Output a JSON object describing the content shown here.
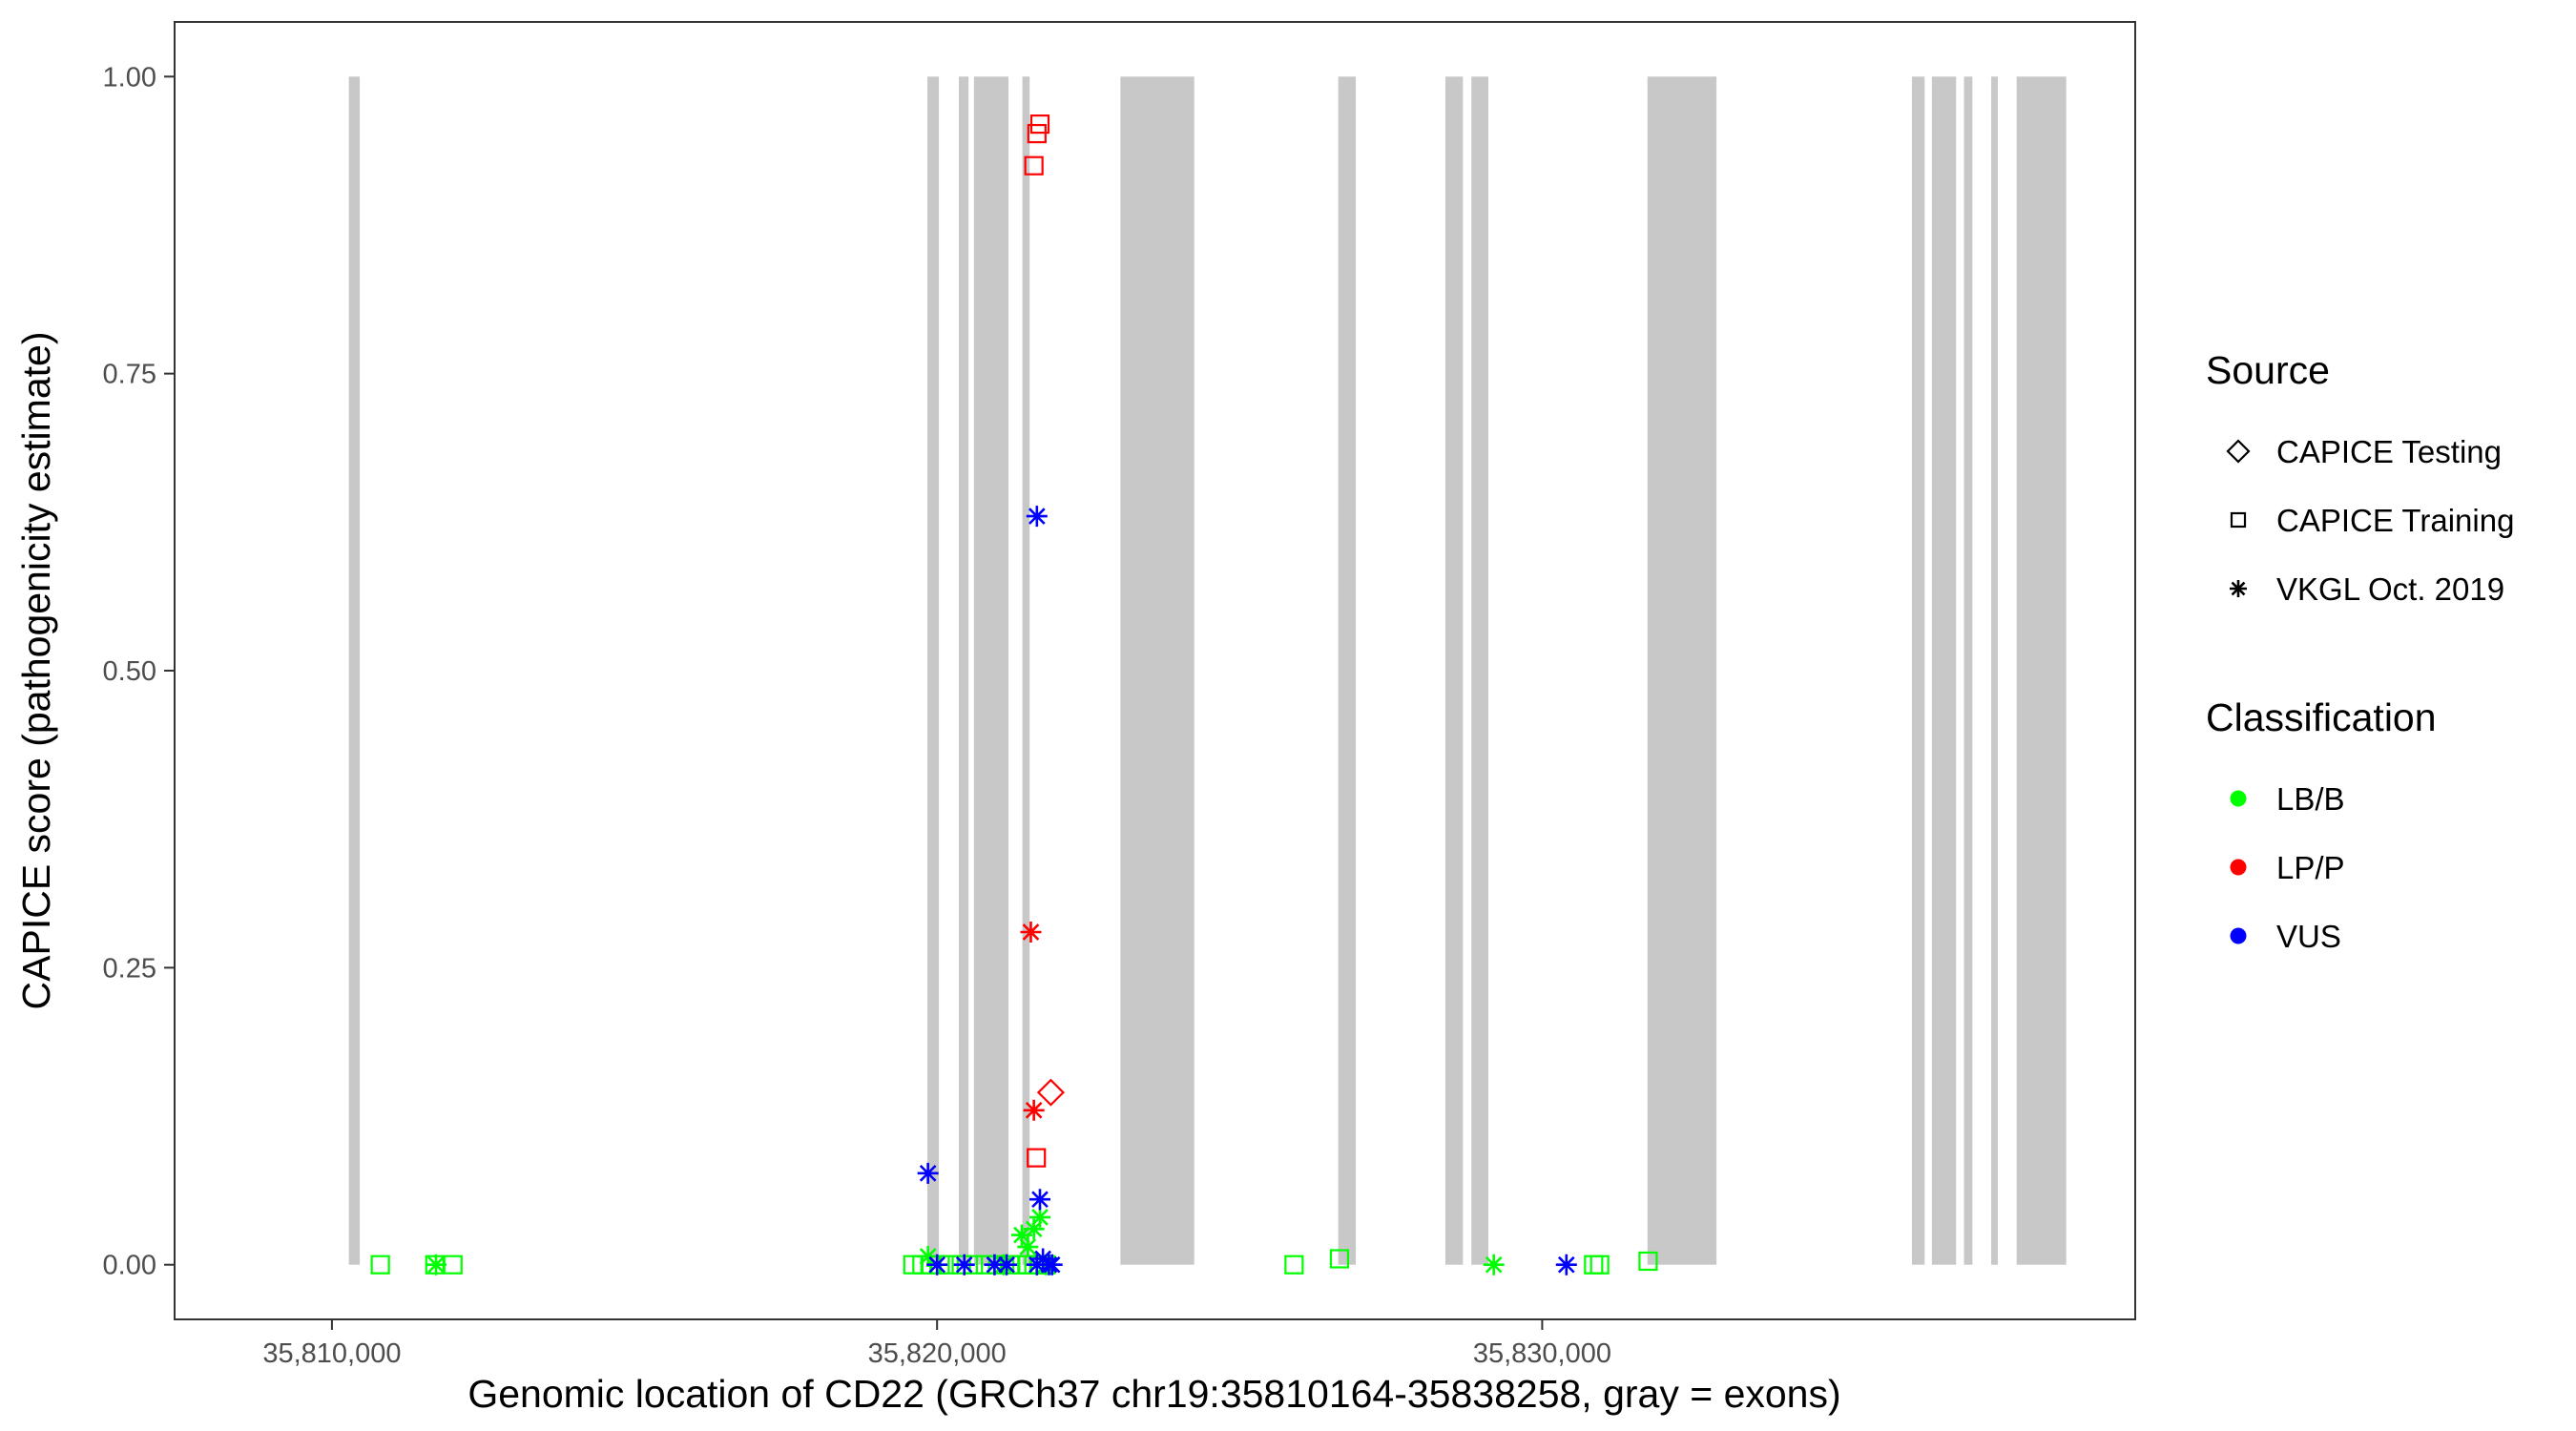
{
  "chart_data": {
    "type": "scatter",
    "title": "",
    "xlabel": "Genomic location of CD22 (GRCh37 chr19:35810164-35838258, gray = exons)",
    "ylabel": "CAPICE score (pathogenicity estimate)",
    "xlim": [
      35807400,
      35839800
    ],
    "ylim": [
      -0.046,
      1.046
    ],
    "x_ticks": [
      35810000,
      35820000,
      35830000
    ],
    "x_tick_labels": [
      "35,810,000",
      "35,820,000",
      "35,830,000"
    ],
    "y_ticks": [
      0,
      0.25,
      0.5,
      0.75,
      1
    ],
    "y_tick_labels": [
      "0.00",
      "0.25",
      "0.50",
      "0.75",
      "1.00"
    ],
    "grid": false,
    "exon_color": "#c8c8c8",
    "exons": [
      [
        35810280,
        35810460
      ],
      [
        35819840,
        35820030
      ],
      [
        35820360,
        35820520
      ],
      [
        35820610,
        35821180
      ],
      [
        35821410,
        35821530
      ],
      [
        35823030,
        35824250
      ],
      [
        35826630,
        35826920
      ],
      [
        35828400,
        35828690
      ],
      [
        35828830,
        35829110
      ],
      [
        35831740,
        35832880
      ],
      [
        35836110,
        35836320
      ],
      [
        35836440,
        35836840
      ],
      [
        35836970,
        35837110
      ],
      [
        35837420,
        35837530
      ],
      [
        35837840,
        35838660
      ]
    ],
    "legend_position": "right",
    "legends": [
      {
        "title": "Source",
        "items": [
          {
            "label": "CAPICE Testing",
            "shape": "diamond"
          },
          {
            "label": "CAPICE Training",
            "shape": "square"
          },
          {
            "label": "VKGL Oct. 2019",
            "shape": "asterisk"
          }
        ]
      },
      {
        "title": "Classification",
        "items": [
          {
            "label": "LB/B",
            "color": "#00ff00"
          },
          {
            "label": "LP/P",
            "color": "#ff0000"
          },
          {
            "label": "VUS",
            "color": "#0000ff"
          }
        ]
      }
    ],
    "series": [
      {
        "source": "CAPICE Training",
        "classification": "LB/B",
        "shape": "square",
        "color": "#00ff00",
        "points": [
          [
            35810800,
            0.0
          ],
          [
            35811700,
            0.0
          ],
          [
            35812000,
            0.0
          ],
          [
            35819600,
            0.0
          ],
          [
            35819750,
            0.0
          ],
          [
            35819900,
            0.0
          ],
          [
            35820050,
            0.0
          ],
          [
            35820200,
            0.0
          ],
          [
            35820400,
            0.0
          ],
          [
            35820600,
            0.0
          ],
          [
            35820800,
            0.0
          ],
          [
            35821000,
            0.0
          ],
          [
            35821200,
            0.0
          ],
          [
            35821400,
            0.0
          ],
          [
            35821500,
            0.0
          ],
          [
            35821600,
            0.0
          ],
          [
            35821700,
            0.0
          ],
          [
            35821800,
            0.0
          ],
          [
            35825900,
            0.0
          ],
          [
            35826650,
            0.005
          ],
          [
            35830850,
            0.0
          ],
          [
            35830950,
            0.0
          ],
          [
            35831750,
            0.003
          ]
        ]
      },
      {
        "source": "VKGL Oct. 2019",
        "classification": "LB/B",
        "shape": "asterisk",
        "color": "#00ff00",
        "points": [
          [
            35811720,
            0.0
          ],
          [
            35819850,
            0.007
          ],
          [
            35821100,
            0.0
          ],
          [
            35821400,
            0.025
          ],
          [
            35821500,
            0.015
          ],
          [
            35821600,
            0.03
          ],
          [
            35821700,
            0.04
          ],
          [
            35821800,
            0.0
          ],
          [
            35821650,
            0.0
          ],
          [
            35829200,
            0.0
          ]
        ]
      },
      {
        "source": "CAPICE Training",
        "classification": "LP/P",
        "shape": "square",
        "color": "#ff0000",
        "points": [
          [
            35821600,
            0.925
          ],
          [
            35821650,
            0.952
          ],
          [
            35821700,
            0.96
          ],
          [
            35821640,
            0.09
          ]
        ]
      },
      {
        "source": "VKGL Oct. 2019",
        "classification": "LP/P",
        "shape": "asterisk",
        "color": "#ff0000",
        "points": [
          [
            35821550,
            0.28
          ],
          [
            35821600,
            0.13
          ]
        ]
      },
      {
        "source": "CAPICE Testing",
        "classification": "LP/P",
        "shape": "diamond",
        "color": "#ff0000",
        "points": [
          [
            35821880,
            0.145
          ]
        ]
      },
      {
        "source": "VKGL Oct. 2019",
        "classification": "VUS",
        "shape": "asterisk",
        "color": "#0000ff",
        "points": [
          [
            35821650,
            0.63
          ],
          [
            35819850,
            0.077
          ],
          [
            35821700,
            0.055
          ],
          [
            35820000,
            0.0
          ],
          [
            35820450,
            0.0
          ],
          [
            35820950,
            0.0
          ],
          [
            35821150,
            0.0
          ],
          [
            35821650,
            0.0
          ],
          [
            35821750,
            0.005
          ],
          [
            35821850,
            0.0
          ],
          [
            35821900,
            0.0
          ],
          [
            35830400,
            0.0
          ]
        ]
      }
    ]
  }
}
